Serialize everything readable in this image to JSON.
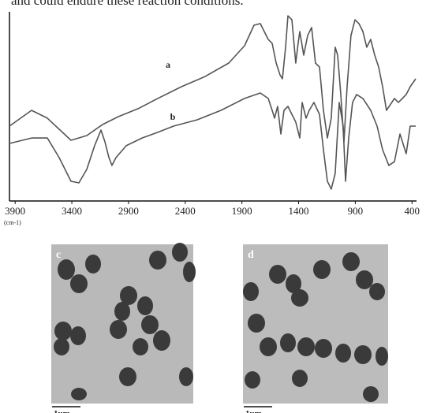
{
  "text_fragment": "and could endure these reaction conditions.",
  "chart_data": {
    "type": "line",
    "xlabel": "(cm-1)",
    "xlim": [
      3950,
      360
    ],
    "ylim": [
      0,
      100
    ],
    "xticks": [
      3900,
      3400,
      2900,
      2400,
      1900,
      1400,
      900,
      400
    ],
    "series": [
      {
        "name": "a",
        "color": "#555555",
        "x": [
          3950,
          3755,
          3616,
          3407,
          3268,
          3129,
          2990,
          2816,
          2642,
          2433,
          2225,
          2016,
          1877,
          1793,
          1738,
          1668,
          1633,
          1598,
          1564,
          1543,
          1515,
          1494,
          1459,
          1425,
          1404,
          1390,
          1355,
          1320,
          1285,
          1251,
          1216,
          1181,
          1146,
          1112,
          1077,
          1056,
          1028,
          1000,
          972,
          938,
          903,
          868,
          833,
          799,
          764,
          729,
          694,
          659,
          625,
          555,
          520,
          451,
          416,
          367
        ],
        "values": [
          39.6,
          47.9,
          43.8,
          32.1,
          34.6,
          40.4,
          44.6,
          48.8,
          54.2,
          60.4,
          65.8,
          72.9,
          82.1,
          92.9,
          93.8,
          85.4,
          83.3,
          72.9,
          66.7,
          64.6,
          81.3,
          97.9,
          95.8,
          72.9,
          83.3,
          89.6,
          77.1,
          87.5,
          91.7,
          72.9,
          70.8,
          47.9,
          33.3,
          43.8,
          81.3,
          77.1,
          56.3,
          31.3,
          60.4,
          87.5,
          95.8,
          93.8,
          89.6,
          81.3,
          85.4,
          77.1,
          70.8,
          60.4,
          47.9,
          54.2,
          52.1,
          56.3,
          60.4,
          64.6
        ]
      },
      {
        "name": "b",
        "color": "#555555",
        "x": [
          3950,
          3755,
          3616,
          3512,
          3407,
          3338,
          3268,
          3199,
          3143,
          3108,
          3073,
          3046,
          3011,
          2920,
          2781,
          2642,
          2503,
          2294,
          2085,
          1877,
          1738,
          1668,
          1633,
          1612,
          1585,
          1557,
          1529,
          1494,
          1459,
          1425,
          1390,
          1369,
          1334,
          1306,
          1265,
          1216,
          1181,
          1146,
          1112,
          1077,
          1042,
          1007,
          986,
          958,
          924,
          889,
          833,
          764,
          708,
          659,
          604,
          555,
          506,
          451,
          416,
          367
        ],
        "values": [
          30.4,
          33.3,
          33.3,
          22.9,
          10.4,
          9.6,
          16.7,
          29.2,
          37.5,
          31.3,
          22.9,
          18.8,
          22.9,
          29.2,
          33.3,
          36.3,
          39.6,
          42.9,
          47.9,
          54.2,
          57.1,
          54.2,
          47.9,
          43.8,
          50.0,
          35.4,
          47.9,
          50.0,
          45.8,
          41.7,
          33.3,
          52.1,
          43.8,
          47.9,
          52.1,
          45.8,
          27.1,
          10.4,
          6.3,
          14.6,
          52.1,
          39.6,
          10.4,
          33.3,
          52.1,
          56.3,
          54.2,
          47.9,
          39.6,
          27.1,
          18.8,
          20.8,
          35.4,
          25.0,
          39.6,
          39.6
        ]
      }
    ]
  },
  "images": [
    {
      "label": "c",
      "scale_bar": "1um"
    },
    {
      "label": "d",
      "scale_bar": "1um"
    }
  ]
}
